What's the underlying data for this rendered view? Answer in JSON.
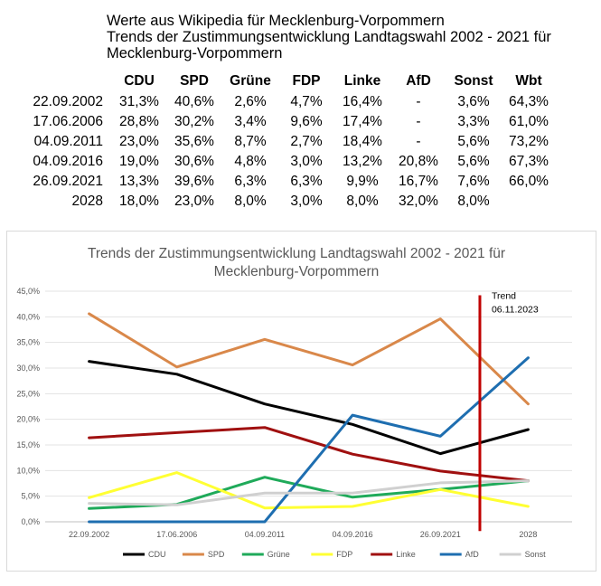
{
  "header": {
    "line1": "Werte aus Wikipedia für Mecklenburg-Vorpommern",
    "line2": "Trends der Zustimmungsentwicklung Landtagswahl 2002 - 2021 für",
    "line3": "Mecklenburg-Vorpommern"
  },
  "table": {
    "columns": [
      "CDU",
      "SPD",
      "Grüne",
      "FDP",
      "Linke",
      "AfD",
      "Sonst",
      "Wbt"
    ],
    "rows": [
      {
        "date": "22.09.2002",
        "cells": [
          "31,3%",
          "40,6%",
          "2,6%",
          "4,7%",
          "16,4%",
          "-",
          "3,6%",
          "64,3%"
        ]
      },
      {
        "date": "17.06.2006",
        "cells": [
          "28,8%",
          "30,2%",
          "3,4%",
          "9,6%",
          "17,4%",
          "-",
          "3,3%",
          "61,0%"
        ]
      },
      {
        "date": "04.09.2011",
        "cells": [
          "23,0%",
          "35,6%",
          "8,7%",
          "2,7%",
          "18,4%",
          "-",
          "5,6%",
          "73,2%"
        ]
      },
      {
        "date": "04.09.2016",
        "cells": [
          "19,0%",
          "30,6%",
          "4,8%",
          "3,0%",
          "13,2%",
          "20,8%",
          "5,6%",
          "67,3%"
        ]
      },
      {
        "date": "26.09.2021",
        "cells": [
          "13,3%",
          "39,6%",
          "6,3%",
          "6,3%",
          "9,9%",
          "16,7%",
          "7,6%",
          "66,0%"
        ]
      },
      {
        "date": "2028",
        "cells": [
          "18,0%",
          "23,0%",
          "8,0%",
          "3,0%",
          "8,0%",
          "32,0%",
          "8,0%",
          ""
        ]
      }
    ]
  },
  "chart_data": {
    "type": "line",
    "title": "Trends der Zustimmungsentwicklung Landtagswahl 2002 - 2021 für Mecklenburg-Vorpommern",
    "categories": [
      "22.09.2002",
      "17.06.2006",
      "04.09.2011",
      "04.09.2016",
      "26.09.2021",
      "2028"
    ],
    "yticks": [
      "0,0%",
      "5,0%",
      "10,0%",
      "15,0%",
      "20,0%",
      "25,0%",
      "30,0%",
      "35,0%",
      "40,0%",
      "45,0%"
    ],
    "ylim": [
      0,
      45
    ],
    "grid": true,
    "legend": "bottom",
    "marker": {
      "label_line1": "Trend",
      "label_line2": "06.11.2023",
      "color": "#c00000"
    },
    "series": [
      {
        "name": "CDU",
        "color": "#000000",
        "values": [
          31.3,
          28.8,
          23.0,
          19.0,
          13.3,
          18.0
        ]
      },
      {
        "name": "SPD",
        "color": "#d9884a",
        "values": [
          40.6,
          30.2,
          35.6,
          30.6,
          39.6,
          23.0
        ]
      },
      {
        "name": "Grüne",
        "color": "#1faa5a",
        "values": [
          2.6,
          3.4,
          8.7,
          4.8,
          6.3,
          8.0
        ]
      },
      {
        "name": "FDP",
        "color": "#ffff33",
        "values": [
          4.7,
          9.6,
          2.7,
          3.0,
          6.3,
          3.0
        ]
      },
      {
        "name": "Linke",
        "color": "#a01010",
        "values": [
          16.4,
          17.4,
          18.4,
          13.2,
          9.9,
          8.0
        ]
      },
      {
        "name": "AfD",
        "color": "#1e6eb0",
        "values": [
          0,
          0,
          0,
          20.8,
          16.7,
          32.0
        ]
      },
      {
        "name": "Sonst",
        "color": "#d0d0d0",
        "values": [
          3.6,
          3.3,
          5.6,
          5.6,
          7.6,
          8.0
        ]
      }
    ]
  }
}
